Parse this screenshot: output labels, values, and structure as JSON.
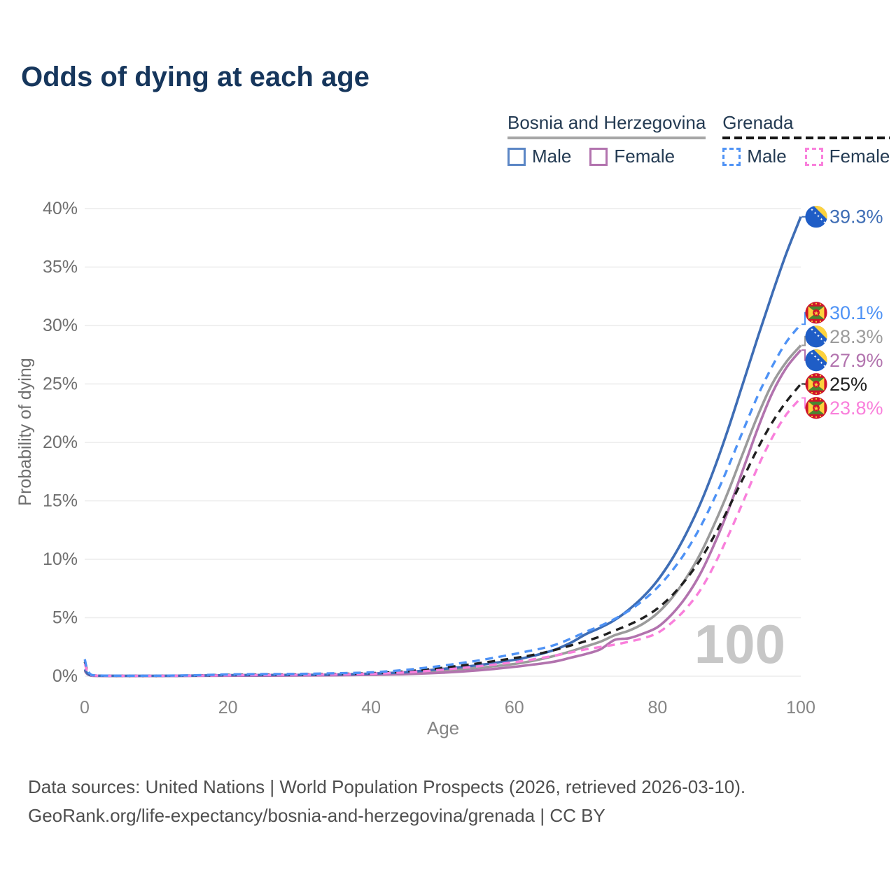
{
  "title": "Odds of dying at each age",
  "legend": {
    "groups": [
      {
        "name": "Bosnia and Herzegovina",
        "line_style": "solid",
        "line_color": "#a6a6a6",
        "items": [
          {
            "label": "Male",
            "swatch_style": "solid",
            "swatch_color": "#5b86c5"
          },
          {
            "label": "Female",
            "swatch_style": "solid",
            "swatch_color": "#b273ae"
          }
        ]
      },
      {
        "name": "Grenada",
        "line_style": "dashed",
        "line_color": "#161616",
        "items": [
          {
            "label": "Male",
            "swatch_style": "dashed",
            "swatch_color": "#4e92f5"
          },
          {
            "label": "Female",
            "swatch_style": "dashed",
            "swatch_color": "#f97fdb"
          }
        ]
      }
    ]
  },
  "chart_data": {
    "type": "line",
    "title": "Odds of dying at each age",
    "xlabel": "Age",
    "ylabel": "Probability of dying",
    "xlim": [
      0,
      100
    ],
    "ylim": [
      0,
      40
    ],
    "xticks": [
      0,
      20,
      40,
      60,
      80,
      100
    ],
    "yticks": [
      0,
      5,
      10,
      15,
      20,
      25,
      30,
      35,
      40
    ],
    "ytick_suffix": "%",
    "grid": true,
    "legend_position": "top-right",
    "watermark": "100",
    "ages": [
      0,
      1,
      5,
      10,
      15,
      20,
      25,
      30,
      35,
      40,
      45,
      50,
      55,
      60,
      62,
      64,
      66,
      68,
      70,
      72,
      74,
      76,
      78,
      80,
      82,
      84,
      86,
      88,
      90,
      92,
      94,
      96,
      98,
      100
    ],
    "series": [
      {
        "id": "bosnia-all",
        "name": "Bosnia and Herzegovina",
        "country": "Bosnia and Herzegovina",
        "group": "All",
        "color": "#9b9b9b",
        "dash": "solid",
        "flag": "bosnia",
        "end_label": "28.3%",
        "end_value": 28.3,
        "values": [
          0.52,
          0.05,
          0.02,
          0.02,
          0.04,
          0.07,
          0.08,
          0.09,
          0.11,
          0.17,
          0.27,
          0.48,
          0.72,
          1.05,
          1.25,
          1.5,
          1.8,
          2.15,
          2.55,
          2.95,
          3.5,
          3.9,
          4.5,
          5.4,
          6.7,
          8.4,
          10.5,
          13.1,
          16.0,
          19.2,
          22.3,
          25.0,
          26.9,
          28.3
        ]
      },
      {
        "id": "bosnia-female",
        "name": "Bosnia and Herzegovina Female",
        "country": "Bosnia and Herzegovina",
        "group": "Female",
        "color": "#b273ae",
        "dash": "solid",
        "flag": "bosnia",
        "end_label": "27.9%",
        "end_value": 27.9,
        "values": [
          0.46,
          0.04,
          0.02,
          0.02,
          0.03,
          0.04,
          0.05,
          0.06,
          0.08,
          0.12,
          0.18,
          0.3,
          0.5,
          0.8,
          0.95,
          1.1,
          1.3,
          1.6,
          1.9,
          2.3,
          3.1,
          3.25,
          3.65,
          4.2,
          5.3,
          6.8,
          8.8,
          11.4,
          14.4,
          17.8,
          21.2,
          24.2,
          26.4,
          27.9
        ]
      },
      {
        "id": "bosnia-male",
        "name": "Bosnia and Herzegovina Male",
        "country": "Bosnia and Herzegovina",
        "group": "Male",
        "color": "#3e6db5",
        "dash": "solid",
        "flag": "bosnia",
        "end_label": "39.3%",
        "end_value": 39.3,
        "values": [
          0.6,
          0.06,
          0.03,
          0.03,
          0.05,
          0.09,
          0.1,
          0.11,
          0.14,
          0.22,
          0.35,
          0.62,
          0.95,
          1.4,
          1.65,
          1.95,
          2.35,
          2.9,
          3.6,
          4.15,
          4.8,
          5.7,
          6.8,
          8.2,
          10.0,
          12.2,
          14.8,
          17.9,
          21.4,
          25.2,
          29.0,
          32.7,
          36.2,
          39.3
        ]
      },
      {
        "id": "grenada-all",
        "name": "Grenada",
        "country": "Grenada",
        "group": "All",
        "color": "#1f1f1f",
        "dash": "dashed",
        "flag": "grenada",
        "end_label": "25%",
        "end_value": 25.0,
        "values": [
          1.25,
          0.08,
          0.03,
          0.03,
          0.06,
          0.11,
          0.13,
          0.15,
          0.19,
          0.26,
          0.42,
          0.72,
          1.1,
          1.55,
          1.75,
          2.0,
          2.3,
          2.65,
          3.0,
          3.4,
          3.9,
          4.4,
          5.0,
          5.8,
          6.9,
          8.3,
          10.0,
          12.1,
          14.5,
          17.0,
          19.5,
          21.7,
          23.5,
          25.0
        ]
      },
      {
        "id": "grenada-female",
        "name": "Grenada Female",
        "country": "Grenada",
        "group": "Female",
        "color": "#f97fdb",
        "dash": "dashed",
        "flag": "grenada",
        "end_label": "23.8%",
        "end_value": 23.8,
        "values": [
          1.1,
          0.07,
          0.03,
          0.03,
          0.05,
          0.08,
          0.1,
          0.12,
          0.15,
          0.21,
          0.33,
          0.55,
          0.85,
          1.2,
          1.38,
          1.58,
          1.8,
          2.05,
          2.3,
          2.5,
          2.7,
          2.95,
          3.25,
          3.7,
          4.6,
          5.8,
          7.4,
          9.6,
          12.2,
          15.0,
          17.9,
          20.4,
          22.4,
          23.8
        ]
      },
      {
        "id": "grenada-male",
        "name": "Grenada Male",
        "country": "Grenada",
        "group": "Male",
        "color": "#4e92f5",
        "dash": "dashed",
        "flag": "grenada",
        "end_label": "30.1%",
        "end_value": 30.1,
        "values": [
          1.45,
          0.1,
          0.04,
          0.04,
          0.08,
          0.15,
          0.18,
          0.2,
          0.25,
          0.33,
          0.55,
          0.9,
          1.35,
          1.9,
          2.15,
          2.4,
          2.75,
          3.25,
          3.8,
          4.3,
          4.9,
          5.6,
          6.5,
          7.6,
          9.0,
          10.7,
          12.8,
          15.3,
          18.1,
          21.1,
          24.0,
          26.5,
          28.6,
          30.1
        ]
      }
    ],
    "flag_colors": {
      "bosnia": {
        "blue": "#1f5dc6",
        "yellow": "#fdd23e",
        "stars": "#ffffff"
      },
      "grenada": {
        "red": "#cf142b",
        "green": "#4b8630",
        "yellow": "#fcd23c"
      }
    }
  },
  "footer": {
    "line1": "Data sources: United Nations | World Population Prospects (2026, retrieved 2026-03-10).",
    "line2": "GeoRank.org/life-expectancy/bosnia-and-herzegovina/grenada | CC BY"
  }
}
